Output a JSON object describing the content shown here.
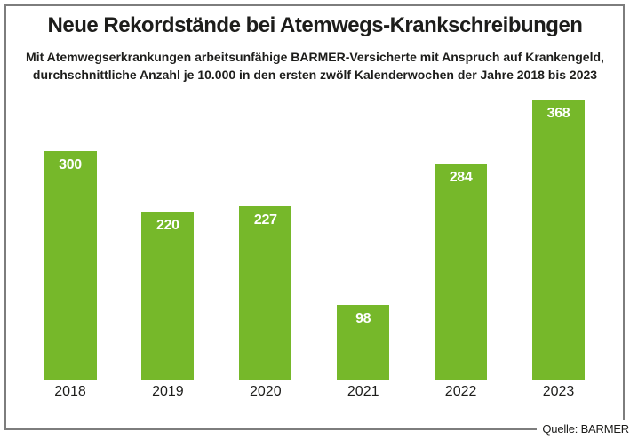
{
  "header": {
    "title": "Neue Rekordstände bei Atemwegs-Krankschreibungen",
    "subtitle_line1": "Mit Atemwegserkrankungen arbeitsunfähige BARMER-Versicherte mit Anspruch auf Krankengeld,",
    "subtitle_line2": "durchschnittliche Anzahl je 10.000 in den ersten zwölf Kalenderwochen der Jahre 2018 bis 2023"
  },
  "source": {
    "label": "Quelle: BARMER"
  },
  "colors": {
    "bar_green": "#76B82A",
    "text_dark": "#1d1d1b",
    "frame_gray": "#7d7d7d",
    "value_label_white": "#ffffff"
  },
  "chart_data": {
    "type": "bar",
    "categories": [
      "2018",
      "2019",
      "2020",
      "2021",
      "2022",
      "2023"
    ],
    "values": [
      300,
      220,
      227,
      98,
      284,
      368
    ],
    "title": "Neue Rekordstände bei Atemwegs-Krankschreibungen",
    "subtitle": "Mit Atemwegserkrankungen arbeitsunfähige BARMER-Versicherte mit Anspruch auf Krankengeld, durchschnittliche Anzahl je 10.000 in den ersten zwölf Kalenderwochen der Jahre 2018 bis 2023",
    "xlabel": "",
    "ylabel": "",
    "ylim": [
      0,
      380
    ],
    "grid": false,
    "legend": false,
    "value_labels": "inside-top",
    "source": "Quelle: BARMER"
  }
}
